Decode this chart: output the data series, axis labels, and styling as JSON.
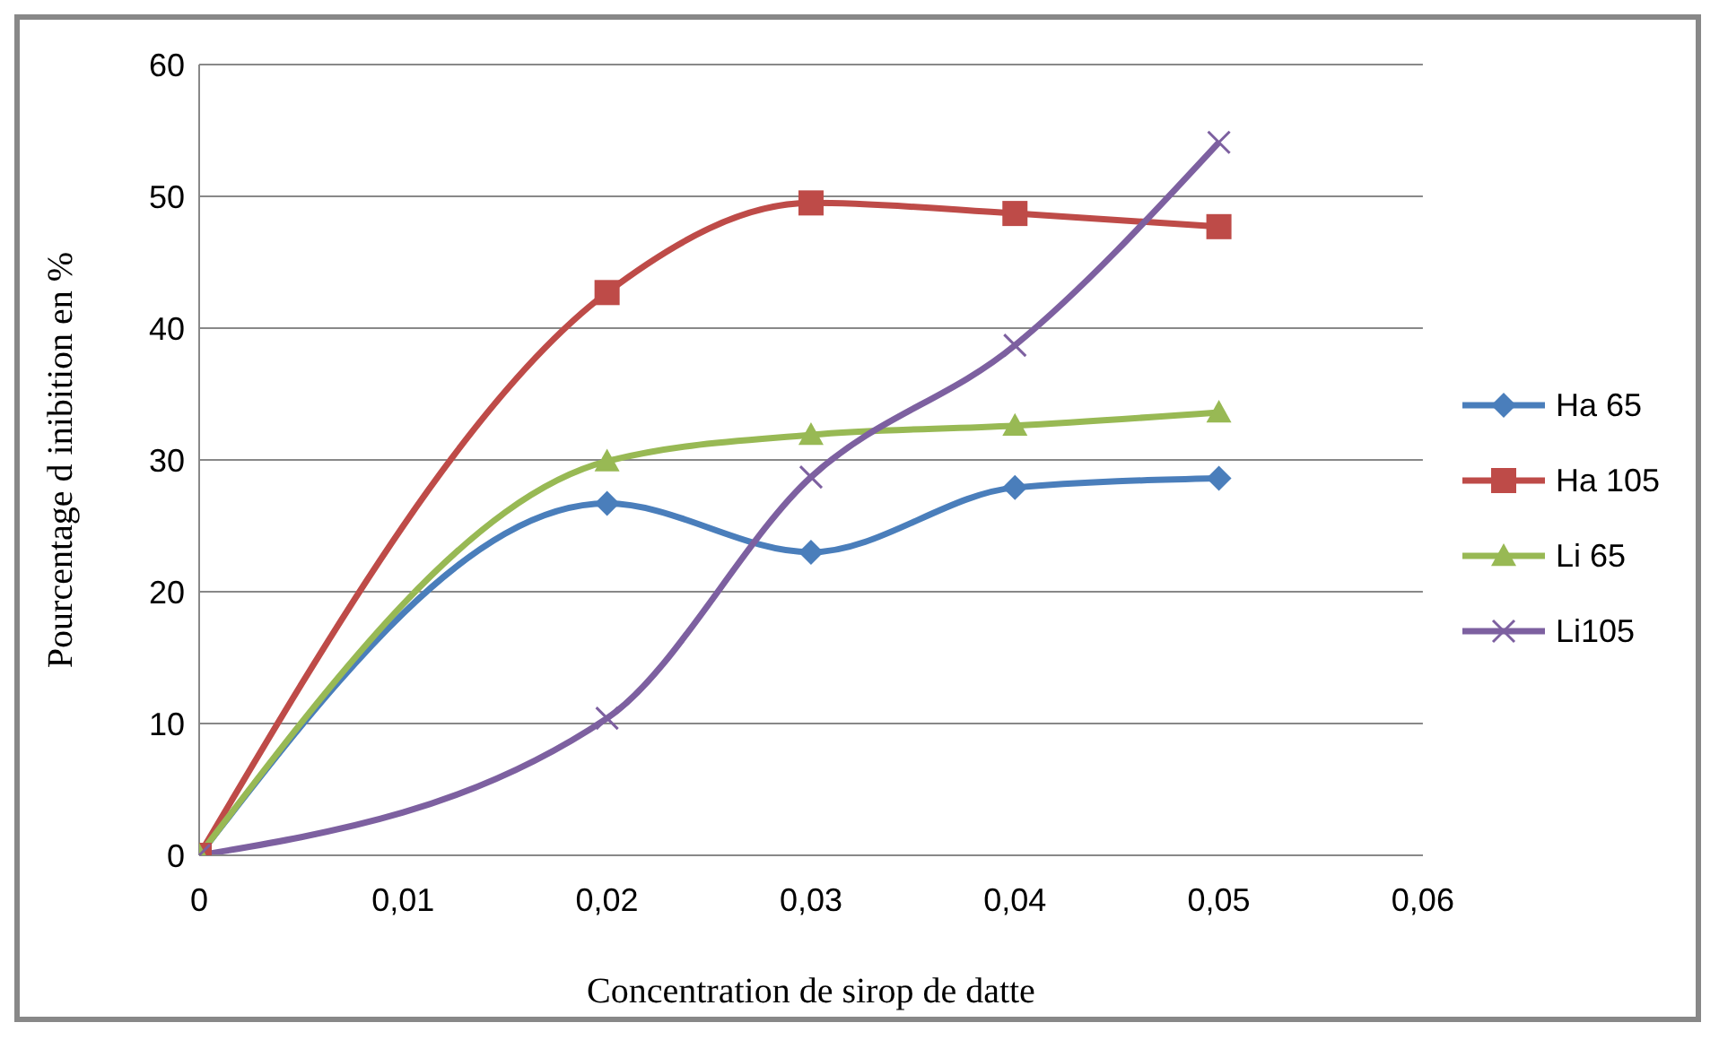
{
  "chart_data": {
    "type": "line",
    "xlabel": "Concentration  de sirop de datte",
    "ylabel": "Pourcentage d inibition en %",
    "x": [
      0,
      0.02,
      0.03,
      0.04,
      0.05
    ],
    "series": [
      {
        "name": "Ha 65",
        "color": "#4a7ebb",
        "marker": "diamond",
        "values": [
          0,
          26.7,
          23.0,
          27.9,
          28.6
        ]
      },
      {
        "name": "Ha 105",
        "color": "#be4b48",
        "marker": "square",
        "values": [
          0,
          42.7,
          49.5,
          48.7,
          47.7
        ]
      },
      {
        "name": "Li 65",
        "color": "#98b954",
        "marker": "triangle",
        "values": [
          0,
          29.9,
          31.9,
          32.6,
          33.6
        ]
      },
      {
        "name": "Li105",
        "color": "#7d60a0",
        "marker": "cross",
        "values": [
          0,
          10.4,
          28.7,
          38.7,
          54.1
        ]
      }
    ],
    "xlim": [
      0,
      0.06
    ],
    "xticks": [
      0,
      {
        "value": 0.01,
        "label": "0,01"
      },
      {
        "value": 0.02,
        "label": "0,02"
      },
      {
        "value": 0.03,
        "label": "0,03"
      },
      {
        "value": 0.04,
        "label": "0,04"
      },
      {
        "value": 0.05,
        "label": "0,05"
      },
      {
        "value": 0.06,
        "label": "0,06"
      }
    ],
    "ylim": [
      0,
      60
    ],
    "yticks": [
      0,
      10,
      20,
      30,
      40,
      50,
      60
    ],
    "grid": "y",
    "legend": "right"
  }
}
